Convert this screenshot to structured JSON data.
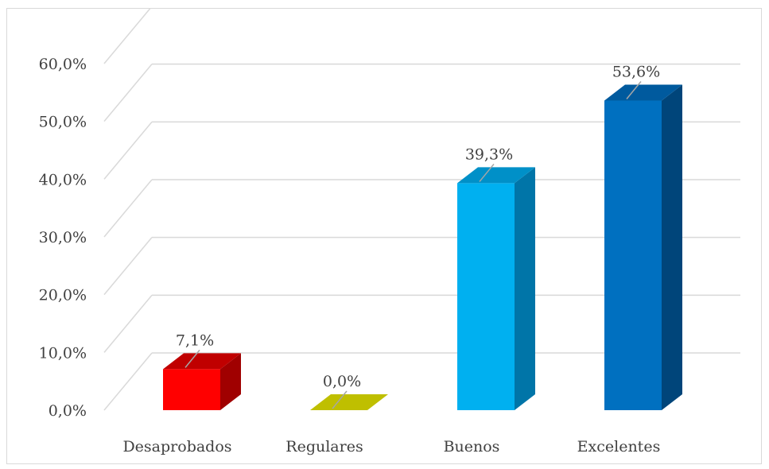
{
  "chart_data": {
    "type": "bar",
    "categories": [
      "Desaprobados",
      "Regulares",
      "Buenos",
      "Excelentes"
    ],
    "values": [
      7.1,
      0.0,
      39.3,
      53.6
    ],
    "data_labels": [
      "7,1%",
      "0,0%",
      "39,3%",
      "53,6%"
    ],
    "ylim": [
      0,
      60
    ],
    "yticks": [
      0,
      10,
      20,
      30,
      40,
      50,
      60
    ],
    "ytick_labels": [
      "0,0%",
      "10,0%",
      "20,0%",
      "30,0%",
      "40,0%",
      "50,0%",
      "60,0%"
    ],
    "grid": true,
    "legend": "none",
    "colors": [
      {
        "front": "#ff0000",
        "top": "#c00000",
        "side": "#a00000"
      },
      {
        "front": "#bfbf00",
        "top": "#bfbf00",
        "side": "#9a9a00"
      },
      {
        "front": "#00b0f0",
        "top": "#0090c8",
        "side": "#0075a8"
      },
      {
        "front": "#0070c0",
        "top": "#005a9e",
        "side": "#00457a"
      }
    ]
  }
}
